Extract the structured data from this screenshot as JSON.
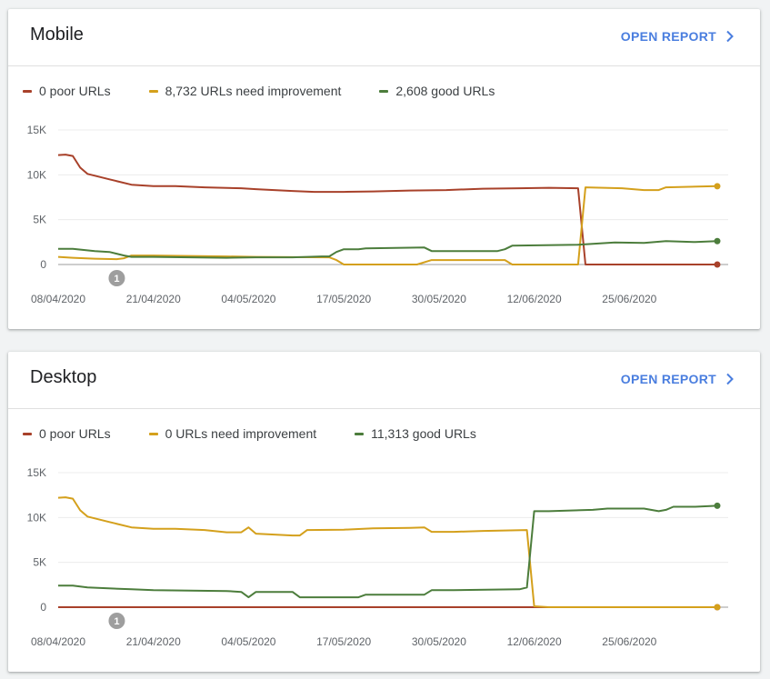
{
  "colors": {
    "poor": "#a8412a",
    "improve": "#d4a01c",
    "good": "#4c7d3c",
    "accent": "#4a7edf"
  },
  "open_report_label": "OPEN REPORT",
  "chevron_icon": "chevron-right-icon",
  "annotation_label": "1",
  "chart_data": [
    {
      "type": "line",
      "title": "Mobile",
      "ylim": [
        0,
        15000
      ],
      "yticks": [
        "15K",
        "10K",
        "5K",
        "0"
      ],
      "xticks": [
        "08/04/2020",
        "21/04/2020",
        "04/05/2020",
        "17/05/2020",
        "30/05/2020",
        "12/06/2020",
        "25/06/2020"
      ],
      "xrange": [
        "2020-04-08",
        "2020-07-07"
      ],
      "annotation": {
        "date": "2020-04-16",
        "label": "1"
      },
      "grid": true,
      "legend_position": "top-left",
      "series": [
        {
          "key": "poor",
          "legend": "0 poor URLs",
          "points": [
            [
              "2020-04-08",
              12200
            ],
            [
              "2020-04-09",
              12250
            ],
            [
              "2020-04-10",
              12100
            ],
            [
              "2020-04-11",
              10800
            ],
            [
              "2020-04-12",
              10100
            ],
            [
              "2020-04-13",
              9900
            ],
            [
              "2020-04-15",
              9500
            ],
            [
              "2020-04-18",
              8900
            ],
            [
              "2020-04-21",
              8750
            ],
            [
              "2020-04-24",
              8750
            ],
            [
              "2020-04-28",
              8600
            ],
            [
              "2020-05-03",
              8500
            ],
            [
              "2020-05-05",
              8400
            ],
            [
              "2020-05-10",
              8200
            ],
            [
              "2020-05-13",
              8100
            ],
            [
              "2020-05-17",
              8100
            ],
            [
              "2020-05-21",
              8150
            ],
            [
              "2020-05-26",
              8250
            ],
            [
              "2020-05-31",
              8300
            ],
            [
              "2020-06-05",
              8450
            ],
            [
              "2020-06-10",
              8500
            ],
            [
              "2020-06-14",
              8550
            ],
            [
              "2020-06-18",
              8500
            ],
            [
              "2020-06-19",
              0
            ],
            [
              "2020-07-07",
              0
            ]
          ]
        },
        {
          "key": "improve",
          "legend": "8,732 URLs need improvement",
          "points": [
            [
              "2020-04-08",
              850
            ],
            [
              "2020-04-10",
              750
            ],
            [
              "2020-04-13",
              650
            ],
            [
              "2020-04-16",
              600
            ],
            [
              "2020-04-17",
              700
            ],
            [
              "2020-04-18",
              1000
            ],
            [
              "2020-04-21",
              1000
            ],
            [
              "2020-05-01",
              900
            ],
            [
              "2020-05-05",
              850
            ],
            [
              "2020-05-15",
              800
            ],
            [
              "2020-05-16",
              500
            ],
            [
              "2020-05-17",
              0
            ],
            [
              "2020-05-27",
              0
            ],
            [
              "2020-05-29",
              500
            ],
            [
              "2020-06-08",
              500
            ],
            [
              "2020-06-09",
              0
            ],
            [
              "2020-06-18",
              0
            ],
            [
              "2020-06-19",
              8600
            ],
            [
              "2020-06-24",
              8500
            ],
            [
              "2020-06-27",
              8300
            ],
            [
              "2020-06-29",
              8300
            ],
            [
              "2020-06-30",
              8600
            ],
            [
              "2020-07-07",
              8732
            ]
          ]
        },
        {
          "key": "good",
          "legend": "2,608 good URLs",
          "points": [
            [
              "2020-04-08",
              1750
            ],
            [
              "2020-04-10",
              1750
            ],
            [
              "2020-04-13",
              1500
            ],
            [
              "2020-04-15",
              1400
            ],
            [
              "2020-04-17",
              1000
            ],
            [
              "2020-04-18",
              850
            ],
            [
              "2020-04-21",
              850
            ],
            [
              "2020-05-01",
              750
            ],
            [
              "2020-05-05",
              800
            ],
            [
              "2020-05-10",
              800
            ],
            [
              "2020-05-14",
              900
            ],
            [
              "2020-05-15",
              900
            ],
            [
              "2020-05-16",
              1400
            ],
            [
              "2020-05-17",
              1700
            ],
            [
              "2020-05-19",
              1700
            ],
            [
              "2020-05-20",
              1800
            ],
            [
              "2020-05-28",
              1900
            ],
            [
              "2020-05-29",
              1500
            ],
            [
              "2020-06-01",
              1500
            ],
            [
              "2020-06-07",
              1500
            ],
            [
              "2020-06-08",
              1700
            ],
            [
              "2020-06-09",
              2100
            ],
            [
              "2020-06-18",
              2200
            ],
            [
              "2020-06-20",
              2300
            ],
            [
              "2020-06-23",
              2450
            ],
            [
              "2020-06-27",
              2400
            ],
            [
              "2020-06-30",
              2600
            ],
            [
              "2020-07-04",
              2500
            ],
            [
              "2020-07-07",
              2608
            ]
          ]
        }
      ]
    },
    {
      "type": "line",
      "title": "Desktop",
      "ylim": [
        0,
        15000
      ],
      "yticks": [
        "15K",
        "10K",
        "5K",
        "0"
      ],
      "xticks": [
        "08/04/2020",
        "21/04/2020",
        "04/05/2020",
        "17/05/2020",
        "30/05/2020",
        "12/06/2020",
        "25/06/2020"
      ],
      "xrange": [
        "2020-04-08",
        "2020-07-07"
      ],
      "annotation": {
        "date": "2020-04-16",
        "label": "1"
      },
      "grid": true,
      "legend_position": "top-left",
      "series": [
        {
          "key": "poor",
          "legend": "0 poor URLs",
          "points": [
            [
              "2020-04-08",
              0
            ],
            [
              "2020-07-07",
              0
            ]
          ]
        },
        {
          "key": "improve",
          "legend": "0 URLs need improvement",
          "points": [
            [
              "2020-04-08",
              12200
            ],
            [
              "2020-04-09",
              12250
            ],
            [
              "2020-04-10",
              12100
            ],
            [
              "2020-04-11",
              10800
            ],
            [
              "2020-04-12",
              10100
            ],
            [
              "2020-04-13",
              9900
            ],
            [
              "2020-04-15",
              9500
            ],
            [
              "2020-04-18",
              8900
            ],
            [
              "2020-04-21",
              8750
            ],
            [
              "2020-04-24",
              8750
            ],
            [
              "2020-04-28",
              8600
            ],
            [
              "2020-05-01",
              8350
            ],
            [
              "2020-05-03",
              8350
            ],
            [
              "2020-05-04",
              8900
            ],
            [
              "2020-05-05",
              8200
            ],
            [
              "2020-05-10",
              8000
            ],
            [
              "2020-05-11",
              8000
            ],
            [
              "2020-05-12",
              8600
            ],
            [
              "2020-05-17",
              8650
            ],
            [
              "2020-05-21",
              8800
            ],
            [
              "2020-05-26",
              8850
            ],
            [
              "2020-05-28",
              8900
            ],
            [
              "2020-05-29",
              8400
            ],
            [
              "2020-06-01",
              8400
            ],
            [
              "2020-06-05",
              8500
            ],
            [
              "2020-06-08",
              8550
            ],
            [
              "2020-06-11",
              8600
            ],
            [
              "2020-06-12",
              100
            ],
            [
              "2020-06-14",
              0
            ],
            [
              "2020-07-07",
              0
            ]
          ]
        },
        {
          "key": "good",
          "legend": "11,313 good URLs",
          "points": [
            [
              "2020-04-08",
              2400
            ],
            [
              "2020-04-10",
              2400
            ],
            [
              "2020-04-12",
              2200
            ],
            [
              "2020-04-18",
              2000
            ],
            [
              "2020-04-21",
              1900
            ],
            [
              "2020-05-01",
              1800
            ],
            [
              "2020-05-03",
              1700
            ],
            [
              "2020-05-04",
              1100
            ],
            [
              "2020-05-05",
              1700
            ],
            [
              "2020-05-10",
              1700
            ],
            [
              "2020-05-11",
              1100
            ],
            [
              "2020-05-15",
              1100
            ],
            [
              "2020-05-19",
              1100
            ],
            [
              "2020-05-20",
              1400
            ],
            [
              "2020-05-28",
              1400
            ],
            [
              "2020-05-29",
              1900
            ],
            [
              "2020-06-01",
              1900
            ],
            [
              "2020-06-10",
              2000
            ],
            [
              "2020-06-11",
              2200
            ],
            [
              "2020-06-12",
              10700
            ],
            [
              "2020-06-14",
              10700
            ],
            [
              "2020-06-20",
              10850
            ],
            [
              "2020-06-22",
              11000
            ],
            [
              "2020-06-27",
              11000
            ],
            [
              "2020-06-29",
              10700
            ],
            [
              "2020-06-30",
              10850
            ],
            [
              "2020-07-01",
              11200
            ],
            [
              "2020-07-04",
              11200
            ],
            [
              "2020-07-07",
              11313
            ]
          ]
        }
      ]
    }
  ]
}
